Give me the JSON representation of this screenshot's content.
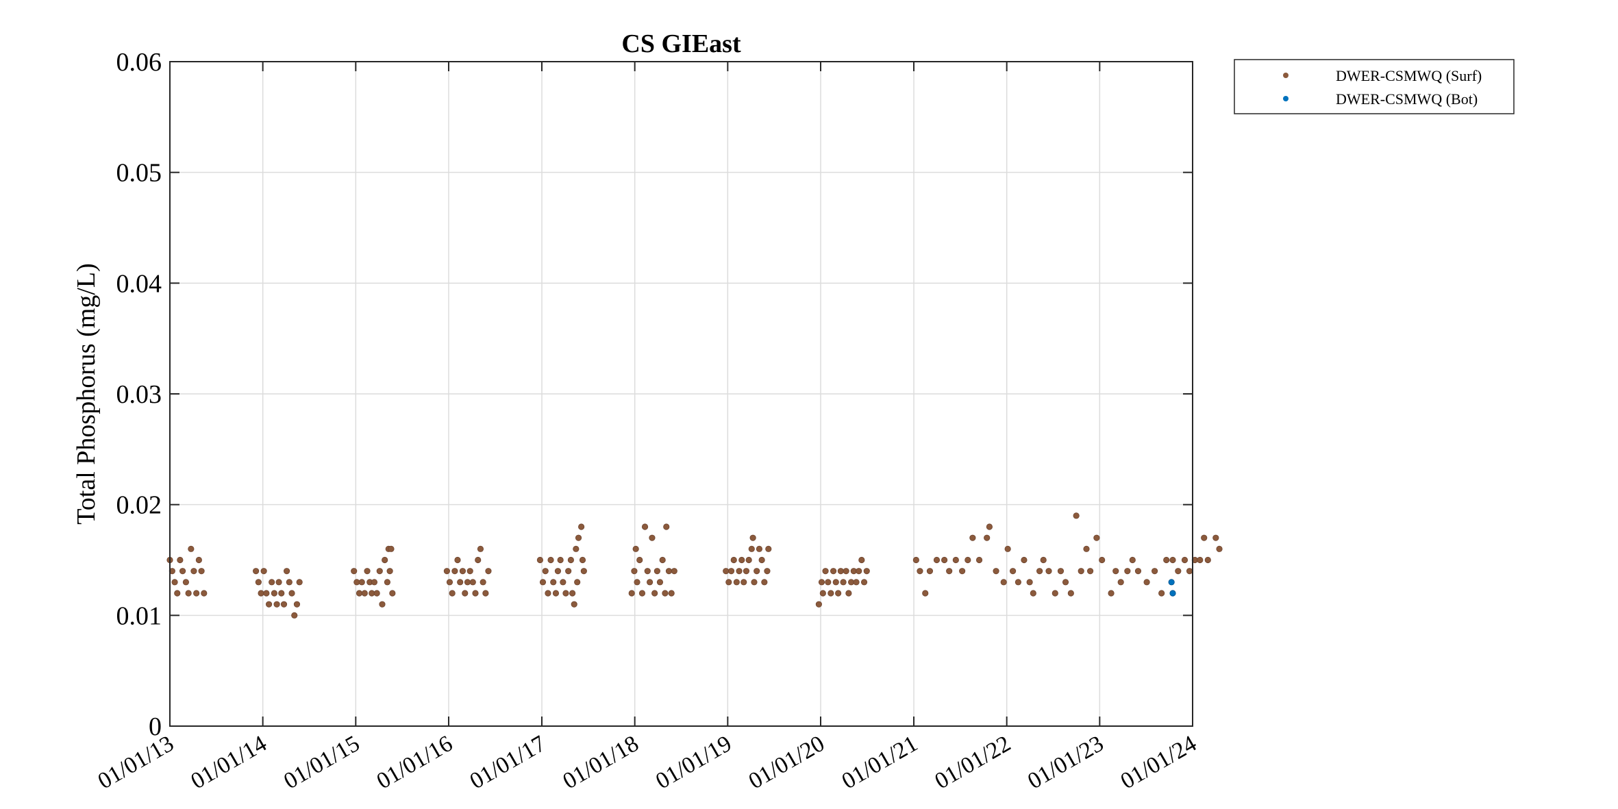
{
  "chart_data": {
    "type": "scatter",
    "title": "CS GIEast",
    "xlabel": "",
    "ylabel": "Total Phosphorus (mg/L)",
    "xlim": [
      "2013-01-01",
      "2024-01-01"
    ],
    "ylim": [
      0,
      0.06
    ],
    "x_ticks": [
      "01/01/13",
      "01/01/14",
      "01/01/15",
      "01/01/16",
      "01/01/17",
      "01/01/18",
      "01/01/19",
      "01/01/20",
      "01/01/21",
      "01/01/22",
      "01/01/23",
      "01/01/24"
    ],
    "y_ticks": [
      "0",
      "0.01",
      "0.02",
      "0.03",
      "0.04",
      "0.05",
      "0.06"
    ],
    "grid": true,
    "legend_position": "outside-top-right",
    "series": [
      {
        "name": "DWER-CSMWQ (Surf)",
        "color": "#8B5A3C",
        "points": [
          [
            "2013-01-01",
            0.015
          ],
          [
            "2013-01-10",
            0.014
          ],
          [
            "2013-01-20",
            0.013
          ],
          [
            "2013-01-30",
            0.012
          ],
          [
            "2013-02-10",
            0.015
          ],
          [
            "2013-02-20",
            0.014
          ],
          [
            "2013-03-05",
            0.013
          ],
          [
            "2013-03-15",
            0.012
          ],
          [
            "2013-03-25",
            0.016
          ],
          [
            "2013-04-05",
            0.014
          ],
          [
            "2013-04-15",
            0.012
          ],
          [
            "2013-04-25",
            0.015
          ],
          [
            "2013-05-05",
            0.014
          ],
          [
            "2013-05-15",
            0.012
          ],
          [
            "2013-12-05",
            0.014
          ],
          [
            "2013-12-15",
            0.013
          ],
          [
            "2013-12-25",
            0.012
          ],
          [
            "2014-01-05",
            0.014
          ],
          [
            "2014-01-15",
            0.012
          ],
          [
            "2014-01-25",
            0.011
          ],
          [
            "2014-02-05",
            0.013
          ],
          [
            "2014-02-15",
            0.012
          ],
          [
            "2014-02-25",
            0.011
          ],
          [
            "2014-03-05",
            0.013
          ],
          [
            "2014-03-15",
            0.012
          ],
          [
            "2014-03-25",
            0.011
          ],
          [
            "2014-04-05",
            0.014
          ],
          [
            "2014-04-15",
            0.013
          ],
          [
            "2014-04-25",
            0.012
          ],
          [
            "2014-05-05",
            0.01
          ],
          [
            "2014-05-15",
            0.011
          ],
          [
            "2014-05-25",
            0.013
          ],
          [
            "2014-12-25",
            0.014
          ],
          [
            "2015-01-05",
            0.013
          ],
          [
            "2015-01-15",
            0.012
          ],
          [
            "2015-01-25",
            0.013
          ],
          [
            "2015-02-05",
            0.012
          ],
          [
            "2015-02-15",
            0.014
          ],
          [
            "2015-02-25",
            0.013
          ],
          [
            "2015-03-05",
            0.012
          ],
          [
            "2015-03-15",
            0.013
          ],
          [
            "2015-03-25",
            0.012
          ],
          [
            "2015-04-05",
            0.014
          ],
          [
            "2015-04-15",
            0.011
          ],
          [
            "2015-04-25",
            0.015
          ],
          [
            "2015-05-05",
            0.013
          ],
          [
            "2015-05-10",
            0.016
          ],
          [
            "2015-05-15",
            0.014
          ],
          [
            "2015-05-20",
            0.016
          ],
          [
            "2015-05-25",
            0.012
          ],
          [
            "2015-12-25",
            0.014
          ],
          [
            "2016-01-05",
            0.013
          ],
          [
            "2016-01-15",
            0.012
          ],
          [
            "2016-01-25",
            0.014
          ],
          [
            "2016-02-05",
            0.015
          ],
          [
            "2016-02-15",
            0.013
          ],
          [
            "2016-02-25",
            0.014
          ],
          [
            "2016-03-05",
            0.012
          ],
          [
            "2016-03-15",
            0.013
          ],
          [
            "2016-03-25",
            0.014
          ],
          [
            "2016-04-05",
            0.013
          ],
          [
            "2016-04-15",
            0.012
          ],
          [
            "2016-04-25",
            0.015
          ],
          [
            "2016-05-05",
            0.016
          ],
          [
            "2016-05-15",
            0.013
          ],
          [
            "2016-05-25",
            0.012
          ],
          [
            "2016-06-05",
            0.014
          ],
          [
            "2016-12-25",
            0.015
          ],
          [
            "2017-01-05",
            0.013
          ],
          [
            "2017-01-15",
            0.014
          ],
          [
            "2017-01-25",
            0.012
          ],
          [
            "2017-02-05",
            0.015
          ],
          [
            "2017-02-15",
            0.013
          ],
          [
            "2017-02-25",
            0.012
          ],
          [
            "2017-03-05",
            0.014
          ],
          [
            "2017-03-15",
            0.015
          ],
          [
            "2017-03-25",
            0.013
          ],
          [
            "2017-04-05",
            0.012
          ],
          [
            "2017-04-15",
            0.014
          ],
          [
            "2017-04-25",
            0.015
          ],
          [
            "2017-05-01",
            0.012
          ],
          [
            "2017-05-08",
            0.011
          ],
          [
            "2017-05-15",
            0.016
          ],
          [
            "2017-05-20",
            0.013
          ],
          [
            "2017-05-25",
            0.017
          ],
          [
            "2017-06-05",
            0.018
          ],
          [
            "2017-06-10",
            0.015
          ],
          [
            "2017-06-15",
            0.014
          ],
          [
            "2017-12-20",
            0.012
          ],
          [
            "2017-12-30",
            0.014
          ],
          [
            "2018-01-05",
            0.016
          ],
          [
            "2018-01-10",
            0.013
          ],
          [
            "2018-01-20",
            0.015
          ],
          [
            "2018-01-30",
            0.012
          ],
          [
            "2018-02-10",
            0.018
          ],
          [
            "2018-02-20",
            0.014
          ],
          [
            "2018-03-01",
            0.013
          ],
          [
            "2018-03-10",
            0.017
          ],
          [
            "2018-03-20",
            0.012
          ],
          [
            "2018-03-30",
            0.014
          ],
          [
            "2018-04-10",
            0.013
          ],
          [
            "2018-04-20",
            0.015
          ],
          [
            "2018-04-30",
            0.012
          ],
          [
            "2018-05-05",
            0.018
          ],
          [
            "2018-05-15",
            0.014
          ],
          [
            "2018-05-25",
            0.012
          ],
          [
            "2018-06-05",
            0.014
          ],
          [
            "2018-12-25",
            0.014
          ],
          [
            "2019-01-05",
            0.013
          ],
          [
            "2019-01-15",
            0.014
          ],
          [
            "2019-01-25",
            0.015
          ],
          [
            "2019-02-05",
            0.013
          ],
          [
            "2019-02-15",
            0.014
          ],
          [
            "2019-02-25",
            0.015
          ],
          [
            "2019-03-05",
            0.013
          ],
          [
            "2019-03-15",
            0.014
          ],
          [
            "2019-03-25",
            0.015
          ],
          [
            "2019-04-05",
            0.016
          ],
          [
            "2019-04-10",
            0.017
          ],
          [
            "2019-04-15",
            0.013
          ],
          [
            "2019-04-25",
            0.014
          ],
          [
            "2019-05-05",
            0.016
          ],
          [
            "2019-05-15",
            0.015
          ],
          [
            "2019-05-25",
            0.013
          ],
          [
            "2019-06-05",
            0.014
          ],
          [
            "2019-06-10",
            0.016
          ],
          [
            "2019-12-25",
            0.011
          ],
          [
            "2020-01-05",
            0.013
          ],
          [
            "2020-01-10",
            0.012
          ],
          [
            "2020-01-20",
            0.014
          ],
          [
            "2020-01-30",
            0.013
          ],
          [
            "2020-02-10",
            0.012
          ],
          [
            "2020-02-20",
            0.014
          ],
          [
            "2020-03-01",
            0.013
          ],
          [
            "2020-03-10",
            0.012
          ],
          [
            "2020-03-20",
            0.014
          ],
          [
            "2020-03-30",
            0.013
          ],
          [
            "2020-04-10",
            0.014
          ],
          [
            "2020-04-20",
            0.012
          ],
          [
            "2020-04-30",
            0.013
          ],
          [
            "2020-05-10",
            0.014
          ],
          [
            "2020-05-20",
            0.013
          ],
          [
            "2020-05-30",
            0.014
          ],
          [
            "2020-06-10",
            0.015
          ],
          [
            "2020-06-20",
            0.013
          ],
          [
            "2020-06-30",
            0.014
          ],
          [
            "2021-01-10",
            0.015
          ],
          [
            "2021-01-25",
            0.014
          ],
          [
            "2021-02-15",
            0.012
          ],
          [
            "2021-03-05",
            0.014
          ],
          [
            "2021-04-01",
            0.015
          ],
          [
            "2021-05-01",
            0.015
          ],
          [
            "2021-05-20",
            0.014
          ],
          [
            "2021-06-15",
            0.015
          ],
          [
            "2021-07-10",
            0.014
          ],
          [
            "2021-08-01",
            0.015
          ],
          [
            "2021-08-20",
            0.017
          ],
          [
            "2021-09-15",
            0.015
          ],
          [
            "2021-10-15",
            0.017
          ],
          [
            "2021-10-25",
            0.018
          ],
          [
            "2021-11-20",
            0.014
          ],
          [
            "2021-12-20",
            0.013
          ],
          [
            "2022-01-05",
            0.016
          ],
          [
            "2022-01-25",
            0.014
          ],
          [
            "2022-02-15",
            0.013
          ],
          [
            "2022-03-10",
            0.015
          ],
          [
            "2022-04-01",
            0.013
          ],
          [
            "2022-04-15",
            0.012
          ],
          [
            "2022-05-10",
            0.014
          ],
          [
            "2022-05-25",
            0.015
          ],
          [
            "2022-06-15",
            0.014
          ],
          [
            "2022-07-10",
            0.012
          ],
          [
            "2022-08-01",
            0.014
          ],
          [
            "2022-08-20",
            0.013
          ],
          [
            "2022-09-10",
            0.012
          ],
          [
            "2022-10-01",
            0.019
          ],
          [
            "2022-10-20",
            0.014
          ],
          [
            "2022-11-10",
            0.016
          ],
          [
            "2022-11-25",
            0.014
          ],
          [
            "2022-12-20",
            0.017
          ],
          [
            "2023-01-10",
            0.015
          ],
          [
            "2023-02-15",
            0.012
          ],
          [
            "2023-03-05",
            0.014
          ],
          [
            "2023-03-25",
            0.013
          ],
          [
            "2023-04-20",
            0.014
          ],
          [
            "2023-05-10",
            0.015
          ],
          [
            "2023-06-01",
            0.014
          ],
          [
            "2023-07-05",
            0.013
          ],
          [
            "2023-08-05",
            0.014
          ],
          [
            "2023-09-01",
            0.012
          ],
          [
            "2023-09-20",
            0.015
          ],
          [
            "2023-10-15",
            0.015
          ],
          [
            "2023-11-05",
            0.014
          ],
          [
            "2023-12-01",
            0.015
          ],
          [
            "2023-12-20",
            0.014
          ],
          [
            "2024-01-10",
            0.015
          ],
          [
            "2024-01-30",
            0.015
          ],
          [
            "2024-02-15",
            0.017
          ],
          [
            "2024-03-01",
            0.015
          ],
          [
            "2024-04-01",
            0.017
          ],
          [
            "2024-04-15",
            0.016
          ]
        ]
      },
      {
        "name": "DWER-CSMWQ (Bot)",
        "color": "#0072BD",
        "points": [
          [
            "2023-10-10",
            0.013
          ],
          [
            "2023-10-15",
            0.012
          ]
        ]
      }
    ]
  },
  "legend": {
    "entries": [
      "DWER-CSMWQ (Surf)",
      "DWER-CSMWQ (Bot)"
    ]
  }
}
